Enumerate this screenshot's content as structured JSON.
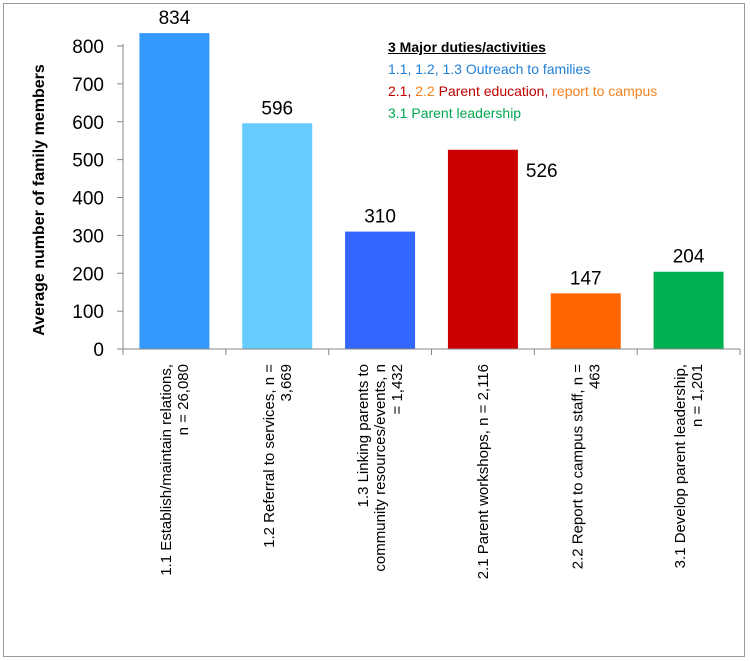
{
  "chart_data": {
    "type": "bar",
    "ylabel": "Average number of family members",
    "ylim": [
      0,
      800
    ],
    "yticks": [
      0,
      100,
      200,
      300,
      400,
      500,
      600,
      700,
      800
    ],
    "categories": [
      [
        "1.1 Establish/maintain relations,",
        "n = 26,080"
      ],
      [
        "1.2 Referral to services, n =",
        "3,669"
      ],
      [
        "1.3 Linking parents to",
        "community resources/events, n",
        "= 1,432"
      ],
      [
        "2.1 Parent workshops, n = 2,116"
      ],
      [
        "2.2 Report to campus staff, n =",
        "463"
      ],
      [
        "3.1 Develop parent leadership,",
        "n = 1,201"
      ]
    ],
    "values": [
      834,
      596,
      310,
      526,
      147,
      204
    ],
    "value_labels": [
      "834",
      "596",
      "310",
      "526",
      "147",
      "204"
    ],
    "colors": [
      "#3399ff",
      "#66ccff",
      "#3366ff",
      "#cc0000",
      "#ff6600",
      "#00b050"
    ],
    "grid": false
  },
  "legend": {
    "title": "3 Major duties/activities",
    "lines": [
      [
        {
          "text": "1.1, 1.2, 1.3 Outreach to families",
          "color": "#1f7fd6"
        }
      ],
      [
        {
          "text": "2.1, ",
          "color": "#c00000"
        },
        {
          "text": "2.2",
          "color": "#f58220"
        },
        {
          "text": " Parent education, ",
          "color": "#c00000"
        },
        {
          "text": "report to campus",
          "color": "#f58220"
        }
      ],
      [
        {
          "text": "3.1 Parent leadership",
          "color": "#00a651"
        }
      ]
    ]
  }
}
